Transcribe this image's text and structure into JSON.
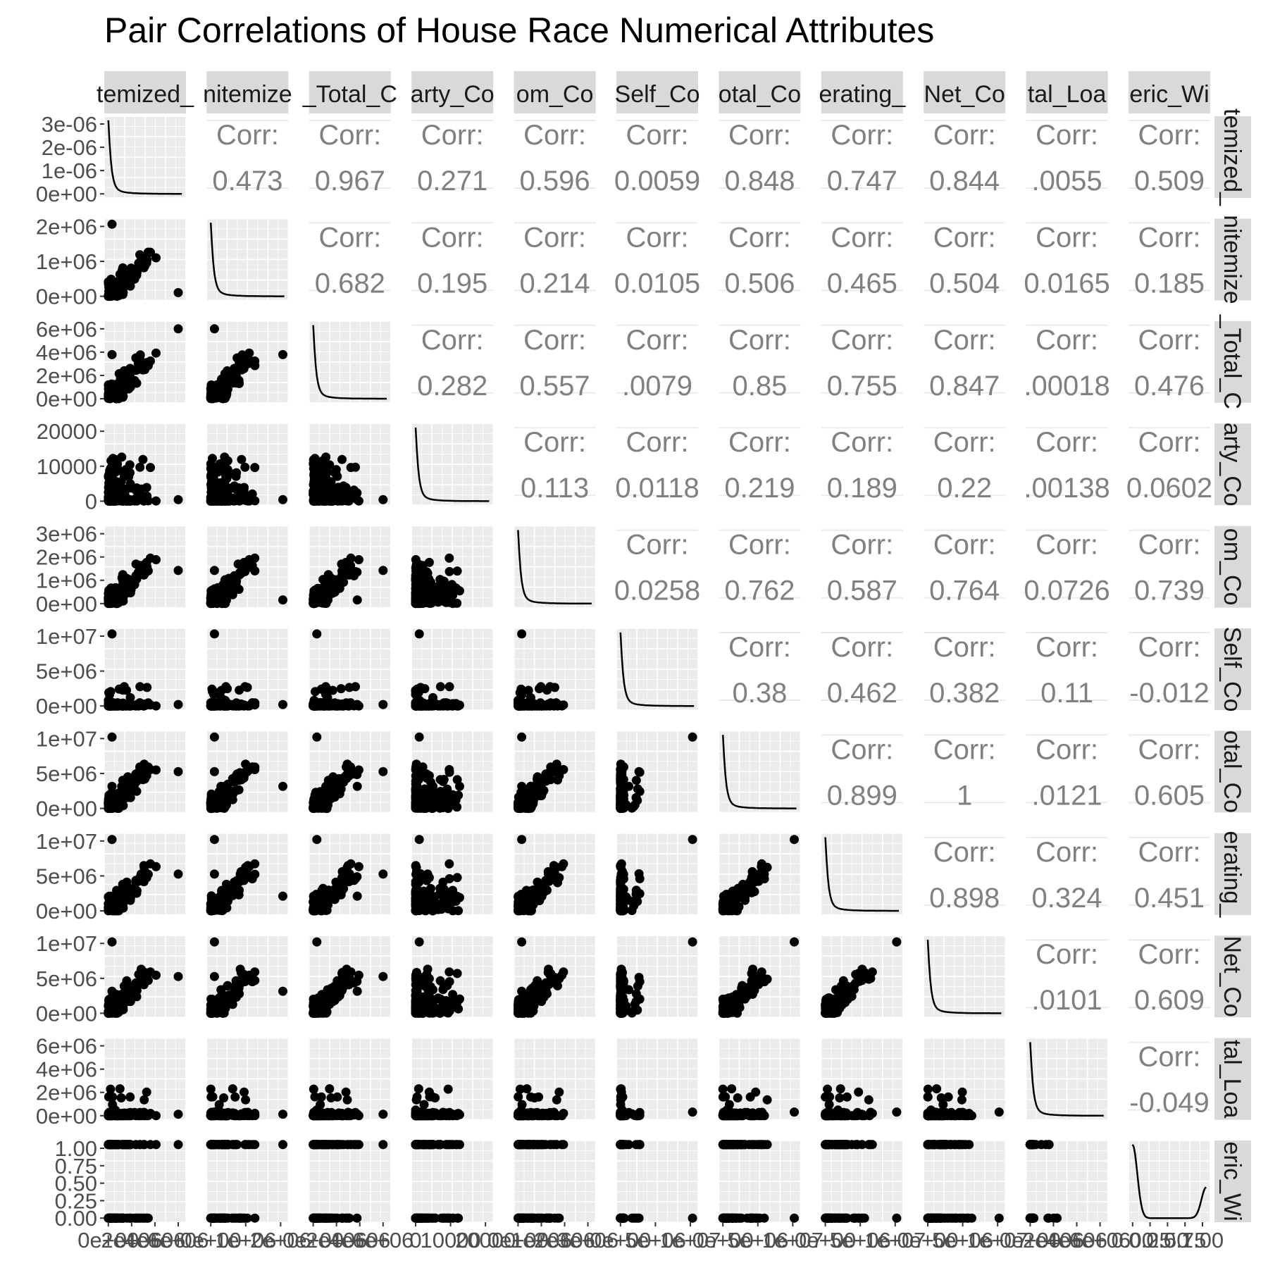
{
  "chart_data": {
    "type": "scatter-matrix",
    "title": "Pair Correlations of House Race Numerical Attributes",
    "colors": {
      "panel_bg": "#ebebeb",
      "grid": "#ffffff",
      "strip_bg": "#d9d9d9",
      "points": "#000000",
      "corr_text": "#808080",
      "axis_text": "#4d4d4d"
    },
    "variables": [
      {
        "strip": "temized_",
        "range": [
          0,
          5000000
        ]
      },
      {
        "strip": "nitemize",
        "range": [
          0,
          3000000
        ]
      },
      {
        "strip": "_Total_C",
        "range": [
          0,
          6000000
        ]
      },
      {
        "strip": "arty_Co",
        "range": [
          0,
          25000
        ]
      },
      {
        "strip": "om_Co",
        "range": [
          0,
          3500000
        ]
      },
      {
        "strip": "Self_Co",
        "range": [
          0,
          14000000
        ]
      },
      {
        "strip": "otal_Co",
        "range": [
          0,
          14000000
        ]
      },
      {
        "strip": "erating_",
        "range": [
          0,
          14000000
        ]
      },
      {
        "strip": "Net_Co",
        "range": [
          0,
          14000000
        ]
      },
      {
        "strip": "tal_Loa",
        "range": [
          0,
          6000000
        ]
      },
      {
        "strip": "eric_Wi",
        "range": [
          0,
          1
        ]
      }
    ],
    "y_tick_labels": [
      [
        "3e-06",
        "2e-06",
        "1e-06",
        "0e+00"
      ],
      [
        "2e+06",
        "1e+06",
        "0e+00"
      ],
      [
        "6e+06",
        "4e+06",
        "2e+06",
        "0e+00"
      ],
      [
        "20000",
        "10000",
        "0"
      ],
      [
        "3e+06",
        "2e+06",
        "1e+06",
        "0e+00"
      ],
      [
        "1e+07",
        "5e+06",
        "0e+00"
      ],
      [
        "1e+07",
        "5e+06",
        "0e+00"
      ],
      [
        "1e+07",
        "5e+06",
        "0e+00"
      ],
      [
        "1e+07",
        "5e+06",
        "0e+00"
      ],
      [
        "6e+06",
        "4e+06",
        "2e+06",
        "0e+00"
      ],
      [
        "1.00",
        "0.75",
        "0.50",
        "0.25",
        "0.00"
      ]
    ],
    "x_tick_labels": [
      "0e+00",
      "2e+06",
      "4e+06",
      "6e+06",
      "0e+00",
      "1e+06",
      "2e+06",
      "0e+00",
      "2e+06",
      "4e+06",
      "6e+06",
      "0",
      "10000",
      "20000",
      "0e+00",
      "1e+06",
      "2e+06",
      "3e+06",
      "0e+00",
      "5e+06",
      "1e+07",
      "0e+00",
      "5e+06",
      "1e+07",
      "0e+00",
      "5e+06",
      "1e+07",
      "0e+00",
      "5e+06",
      "1e+07",
      "0e+00",
      "2e+06",
      "4e+06",
      "6e+06",
      "0.00",
      "0.25",
      "0.50",
      "0.75",
      "1.00"
    ],
    "corr_label": "Corr:",
    "correlations": [
      [
        "0.473",
        "0.967",
        "0.271",
        "0.596",
        "0.0059",
        "0.848",
        "0.747",
        "0.844",
        ".0055",
        "0.509"
      ],
      [
        "0.682",
        "0.195",
        "0.214",
        "0.0105",
        "0.506",
        "0.465",
        "0.504",
        "0.0165",
        "0.185"
      ],
      [
        "0.282",
        "0.557",
        ".0079",
        "0.85",
        "0.755",
        "0.847",
        ".00018",
        "0.476"
      ],
      [
        "0.113",
        "0.0118",
        "0.219",
        "0.189",
        "0.22",
        ".00138",
        "0.0602"
      ],
      [
        "0.0258",
        "0.762",
        "0.587",
        "0.764",
        "0.0726",
        "0.739"
      ],
      [
        "0.38",
        "0.462",
        "0.382",
        "0.11",
        "-0.012"
      ],
      [
        "0.899",
        "1",
        ".0121",
        "0.605"
      ],
      [
        "0.898",
        "0.324",
        "0.451"
      ],
      [
        ".0101",
        "0.609"
      ],
      [
        "-0.049"
      ]
    ],
    "diagonal_density": "right-skewed for all numeric variables; bimodal at 0 and 1 for eric_Wi",
    "grid": true
  }
}
